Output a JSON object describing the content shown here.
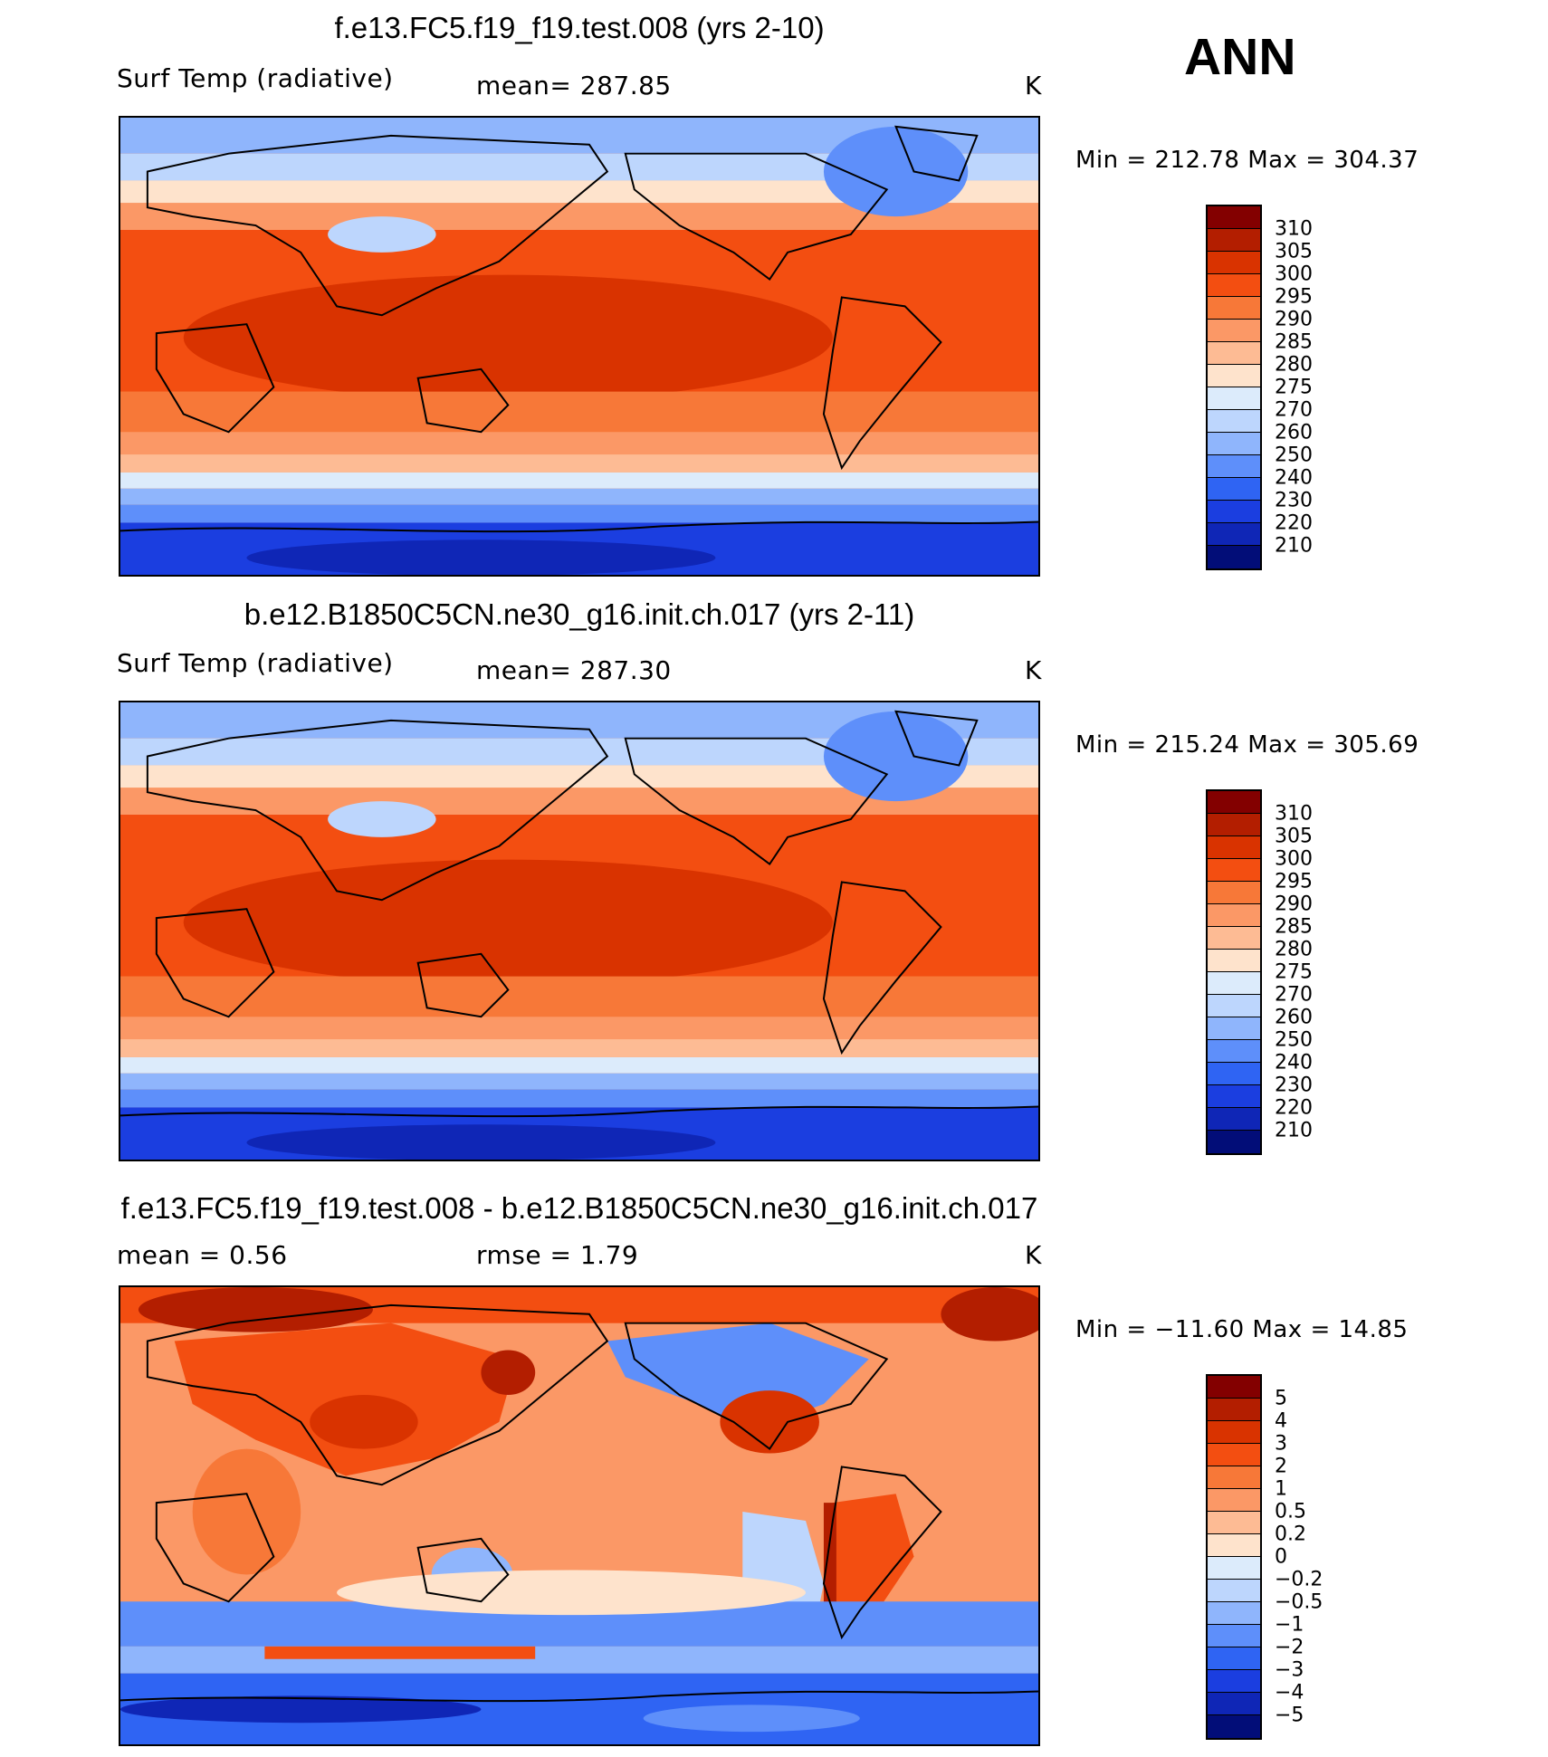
{
  "season": "ANN",
  "units": "K",
  "panels": [
    {
      "title": "f.e13.FC5.f19_f19.test.008 (yrs 2-10)",
      "variable": "Surf Temp (radiative)",
      "stat_left": "",
      "stat_mid": "mean=  287.85",
      "units": "K",
      "minmax": "Min  =  212.78  Max  =  304.37",
      "colorbar_labels": [
        "310",
        "305",
        "300",
        "295",
        "290",
        "285",
        "280",
        "275",
        "270",
        "260",
        "250",
        "240",
        "230",
        "220",
        "210"
      ],
      "colorbar_colors": [
        "#830000",
        "#b31e00",
        "#d93300",
        "#f34e11",
        "#f77838",
        "#fb9866",
        "#fdbb94",
        "#fee3cc",
        "#dcebfb",
        "#bdd6fd",
        "#8fb5fc",
        "#5e8ffa",
        "#2f64f3",
        "#1b3ee0",
        "#0f26b6",
        "#020d78"
      ]
    },
    {
      "title": "b.e12.B1850C5CN.ne30_g16.init.ch.017 (yrs 2-11)",
      "variable": "Surf Temp (radiative)",
      "stat_left": "",
      "stat_mid": "mean=  287.30",
      "units": "K",
      "minmax": "Min  =  215.24  Max  =  305.69",
      "colorbar_labels": [
        "310",
        "305",
        "300",
        "295",
        "290",
        "285",
        "280",
        "275",
        "270",
        "260",
        "250",
        "240",
        "230",
        "220",
        "210"
      ],
      "colorbar_colors": [
        "#830000",
        "#b31e00",
        "#d93300",
        "#f34e11",
        "#f77838",
        "#fb9866",
        "#fdbb94",
        "#fee3cc",
        "#dcebfb",
        "#bdd6fd",
        "#8fb5fc",
        "#5e8ffa",
        "#2f64f3",
        "#1b3ee0",
        "#0f26b6",
        "#020d78"
      ]
    },
    {
      "title": "f.e13.FC5.f19_f19.test.008 - b.e12.B1850C5CN.ne30_g16.init.ch.017",
      "variable": "",
      "stat_left": "mean  =      0.56",
      "stat_mid": "rmse  =      1.79",
      "units": "K",
      "minmax": "Min  =  −11.60  Max  =    14.85",
      "colorbar_labels": [
        "5",
        "4",
        "3",
        "2",
        "1",
        "0.5",
        "0.2",
        "0",
        "−0.2",
        "−0.5",
        "−1",
        "−2",
        "−3",
        "−4",
        "−5"
      ],
      "colorbar_colors": [
        "#830000",
        "#b31e00",
        "#d93300",
        "#f34e11",
        "#f77838",
        "#fb9866",
        "#fdbb94",
        "#fee3cc",
        "#dcebfb",
        "#bdd6fd",
        "#8fb5fc",
        "#5e8ffa",
        "#2f64f3",
        "#1b3ee0",
        "#0f26b6",
        "#020d78"
      ]
    }
  ]
}
